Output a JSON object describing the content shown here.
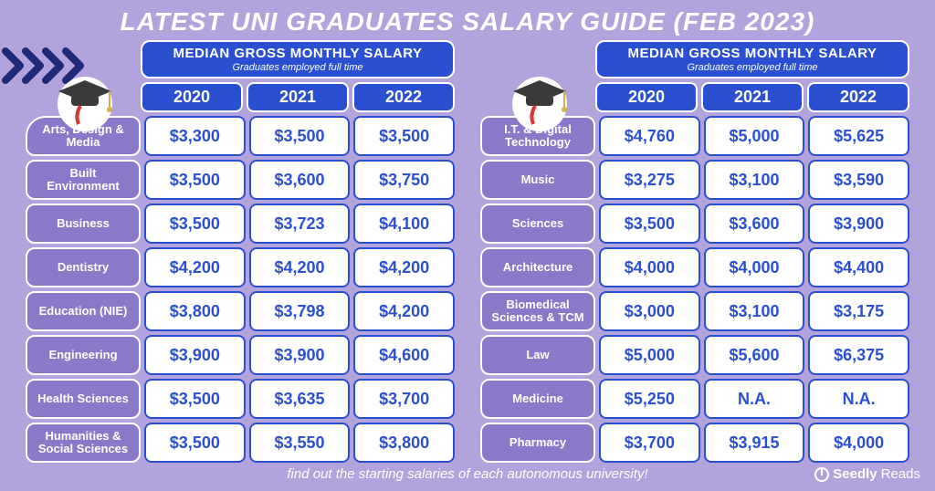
{
  "title": "LATEST UNI GRADUATES SALARY GUIDE (FEB 2023)",
  "header": {
    "line1": "MEDIAN GROSS MONTHLY SALARY",
    "line2": "Graduates employed full time"
  },
  "years": [
    "2020",
    "2021",
    "2022"
  ],
  "footer_note": "find out the starting salaries of each autonomous university!",
  "brand": {
    "name": "Seedly",
    "suffix": "Reads"
  },
  "colors": {
    "page_bg": "#b3a3dd",
    "header_pill_bg": "#2b4fd1",
    "label_bg": "#8b78c8",
    "cell_bg": "#ffffff",
    "cell_text": "#2b4fd1",
    "border": "#ffffff",
    "title_text": "#ffffff",
    "chevron": "#1e2a78"
  },
  "left": {
    "rows": [
      {
        "label": "Arts, Design & Media",
        "v": [
          "$3,300",
          "$3,500",
          "$3,500"
        ]
      },
      {
        "label": "Built Environment",
        "v": [
          "$3,500",
          "$3,600",
          "$3,750"
        ]
      },
      {
        "label": "Business",
        "v": [
          "$3,500",
          "$3,723",
          "$4,100"
        ]
      },
      {
        "label": "Dentistry",
        "v": [
          "$4,200",
          "$4,200",
          "$4,200"
        ]
      },
      {
        "label": "Education (NIE)",
        "v": [
          "$3,800",
          "$3,798",
          "$4,200"
        ]
      },
      {
        "label": "Engineering",
        "v": [
          "$3,900",
          "$3,900",
          "$4,600"
        ]
      },
      {
        "label": "Health Sciences",
        "v": [
          "$3,500",
          "$3,635",
          "$3,700"
        ]
      },
      {
        "label": "Humanities & Social Sciences",
        "v": [
          "$3,500",
          "$3,550",
          "$3,800"
        ]
      }
    ]
  },
  "right": {
    "rows": [
      {
        "label": "I.T. & Digital Technology",
        "v": [
          "$4,760",
          "$5,000",
          "$5,625"
        ]
      },
      {
        "label": "Music",
        "v": [
          "$3,275",
          "$3,100",
          "$3,590"
        ]
      },
      {
        "label": "Sciences",
        "v": [
          "$3,500",
          "$3,600",
          "$3,900"
        ]
      },
      {
        "label": "Architecture",
        "v": [
          "$4,000",
          "$4,000",
          "$4,400"
        ]
      },
      {
        "label": "Biomedical Sciences & TCM",
        "v": [
          "$3,000",
          "$3,100",
          "$3,175"
        ]
      },
      {
        "label": "Law",
        "v": [
          "$5,000",
          "$5,600",
          "$6,375"
        ]
      },
      {
        "label": "Medicine",
        "v": [
          "$5,250",
          "N.A.",
          "N.A."
        ]
      },
      {
        "label": "Pharmacy",
        "v": [
          "$3,700",
          "$3,915",
          "$4,000"
        ]
      }
    ]
  }
}
